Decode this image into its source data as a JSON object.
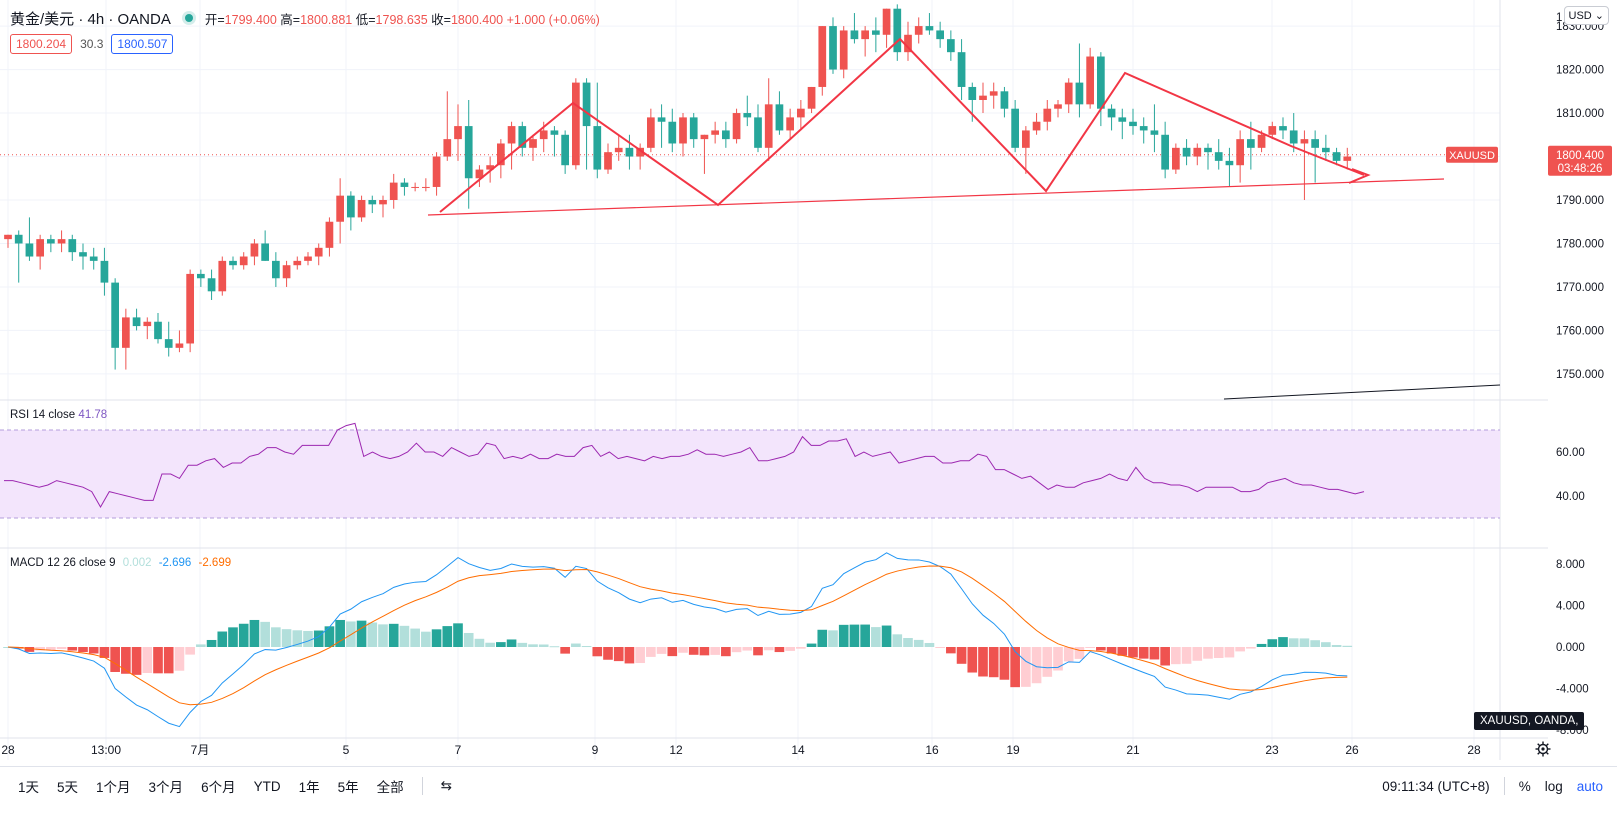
{
  "header": {
    "symbol": "黄金/美元 · 4h · OANDA",
    "ohlc": {
      "open_label": "开=",
      "open": "1799.400",
      "high_label": "高=",
      "high": "1800.881",
      "low_label": "低=",
      "low": "1798.635",
      "close_label": "收=",
      "close": "1800.400",
      "change": "+1.000 (+0.06%)"
    },
    "bid": "1800.204",
    "spread": "30.3",
    "ask": "1800.507",
    "currency_button": "USD ⌄"
  },
  "price_axis": {
    "labels": [
      "1830.000",
      "1820.000",
      "1810.000",
      "1800.000",
      "1790.000",
      "1780.000",
      "1770.000",
      "1760.000",
      "1750.000"
    ],
    "top_partial": "1",
    "current_price": "1800.400",
    "countdown": "03:48:26",
    "symbol_tag": "XAUUSD"
  },
  "rsi": {
    "title": "RSI",
    "params": "14 close",
    "value": "41.78",
    "axis_labels": [
      "60.00",
      "40.00"
    ],
    "upper_band": 70,
    "lower band": 30,
    "values": [
      47,
      47,
      46,
      45,
      44,
      45,
      47,
      46,
      45,
      44,
      42,
      35,
      42,
      41,
      40,
      39,
      38,
      38,
      50,
      50,
      48,
      54,
      54,
      56,
      57,
      53,
      55,
      55,
      58,
      59,
      62,
      62,
      60,
      59,
      63,
      63,
      63,
      63,
      70,
      72,
      73,
      58,
      60,
      58,
      57,
      58,
      60,
      64,
      60,
      60,
      58,
      62,
      60,
      58,
      59,
      64,
      63,
      57,
      58,
      57,
      59,
      57,
      57,
      59,
      58,
      58,
      62,
      63,
      58,
      60,
      57,
      58,
      57,
      56,
      58,
      57,
      58,
      58,
      59,
      61,
      59,
      59,
      58,
      59,
      60,
      62,
      56,
      56,
      57,
      58,
      60,
      67,
      63,
      63,
      65,
      65,
      66,
      58,
      60,
      58,
      59,
      60,
      55,
      56,
      57,
      58,
      58,
      55,
      55,
      56,
      56,
      59,
      58,
      52,
      52,
      50,
      48,
      49,
      46,
      43,
      45,
      44,
      44,
      46,
      47,
      48,
      50,
      48,
      47,
      53,
      48,
      46,
      46,
      45,
      45,
      44,
      42,
      44,
      44,
      44,
      44,
      42,
      42,
      43,
      46,
      47,
      48,
      46,
      45,
      45,
      44,
      43,
      43,
      42,
      41,
      42
    ]
  },
  "macd": {
    "title": "MACD",
    "params": "12 26 close 9",
    "hist_value": "0.002",
    "macd_value": "-2.696",
    "signal_value": "-2.699",
    "axis_labels": [
      "8.000",
      "4.000",
      "0.000",
      "-4.000",
      "-8.000"
    ]
  },
  "chart_data": {
    "type": "candlestick",
    "symbol": "XAUUSD",
    "interval": "4h",
    "ylim": [
      1744,
      1836
    ],
    "x_tick_labels": [
      "28",
      "13:00",
      "7月",
      "5",
      "7",
      "9",
      "12",
      "14",
      "16",
      "19",
      "21",
      "23",
      "26",
      "28"
    ],
    "candles": [
      [
        1781,
        1782,
        1779,
        1782
      ],
      [
        1782,
        1783,
        1771,
        1780
      ],
      [
        1780,
        1786,
        1776,
        1777
      ],
      [
        1777,
        1782,
        1774,
        1781
      ],
      [
        1781,
        1782,
        1778,
        1780
      ],
      [
        1780,
        1783,
        1778,
        1781
      ],
      [
        1781,
        1782,
        1776,
        1778
      ],
      [
        1778,
        1780,
        1774,
        1777
      ],
      [
        1777,
        1779,
        1774,
        1776
      ],
      [
        1776,
        1779,
        1768,
        1771
      ],
      [
        1771,
        1772,
        1751,
        1756
      ],
      [
        1756,
        1765,
        1751,
        1763
      ],
      [
        1763,
        1765,
        1760,
        1761
      ],
      [
        1761,
        1763,
        1758,
        1762
      ],
      [
        1762,
        1764,
        1757,
        1758
      ],
      [
        1758,
        1762,
        1754,
        1756
      ],
      [
        1756,
        1760,
        1755,
        1757
      ],
      [
        1757,
        1774,
        1755,
        1773
      ],
      [
        1773,
        1774,
        1770,
        1772
      ],
      [
        1772,
        1774,
        1767,
        1769
      ],
      [
        1769,
        1777,
        1768,
        1776
      ],
      [
        1776,
        1777,
        1774,
        1775
      ],
      [
        1775,
        1778,
        1774,
        1777
      ],
      [
        1777,
        1781,
        1775,
        1780
      ],
      [
        1780,
        1783,
        1776,
        1776
      ],
      [
        1776,
        1778,
        1770,
        1772
      ],
      [
        1772,
        1776,
        1770,
        1775
      ],
      [
        1775,
        1777,
        1774,
        1776
      ],
      [
        1776,
        1778,
        1775,
        1777
      ],
      [
        1777,
        1780,
        1775,
        1779
      ],
      [
        1779,
        1786,
        1777,
        1785
      ],
      [
        1785,
        1795,
        1780,
        1791
      ],
      [
        1791,
        1792,
        1783,
        1786
      ],
      [
        1786,
        1791,
        1785,
        1790
      ],
      [
        1790,
        1791,
        1787,
        1789
      ],
      [
        1789,
        1791,
        1786,
        1790
      ],
      [
        1790,
        1796,
        1788,
        1794
      ],
      [
        1794,
        1795,
        1791,
        1793
      ],
      [
        1793,
        1794,
        1792,
        1793
      ],
      [
        1793,
        1795,
        1792,
        1793
      ],
      [
        1793,
        1801,
        1791,
        1800
      ],
      [
        1800,
        1815,
        1799,
        1804
      ],
      [
        1804,
        1812,
        1799,
        1807
      ],
      [
        1807,
        1813,
        1788,
        1795
      ],
      [
        1795,
        1798,
        1793,
        1797
      ],
      [
        1797,
        1800,
        1794,
        1798
      ],
      [
        1798,
        1804,
        1795,
        1803
      ],
      [
        1803,
        1808,
        1797,
        1807
      ],
      [
        1807,
        1808,
        1800,
        1802
      ],
      [
        1802,
        1805,
        1799,
        1804
      ],
      [
        1804,
        1808,
        1801,
        1806
      ],
      [
        1806,
        1807,
        1800,
        1805
      ],
      [
        1805,
        1806,
        1796,
        1798
      ],
      [
        1798,
        1818,
        1797,
        1817
      ],
      [
        1817,
        1818,
        1797,
        1807
      ],
      [
        1807,
        1817,
        1795,
        1797
      ],
      [
        1797,
        1803,
        1796,
        1801
      ],
      [
        1801,
        1805,
        1799,
        1802
      ],
      [
        1802,
        1805,
        1797,
        1800
      ],
      [
        1800,
        1803,
        1797,
        1802
      ],
      [
        1802,
        1811,
        1801,
        1809
      ],
      [
        1809,
        1812,
        1802,
        1808
      ],
      [
        1808,
        1811,
        1801,
        1803
      ],
      [
        1803,
        1810,
        1800,
        1809
      ],
      [
        1809,
        1810,
        1802,
        1804
      ],
      [
        1804,
        1805,
        1796,
        1805
      ],
      [
        1805,
        1808,
        1803,
        1806
      ],
      [
        1806,
        1808,
        1802,
        1804
      ],
      [
        1804,
        1811,
        1803,
        1810
      ],
      [
        1810,
        1814,
        1807,
        1809
      ],
      [
        1809,
        1812,
        1801,
        1802
      ],
      [
        1802,
        1818,
        1799,
        1812
      ],
      [
        1812,
        1815,
        1805,
        1806
      ],
      [
        1806,
        1811,
        1804,
        1809
      ],
      [
        1809,
        1813,
        1806,
        1811
      ],
      [
        1811,
        1816,
        1810,
        1816
      ],
      [
        1816,
        1830,
        1814,
        1830
      ],
      [
        1830,
        1832,
        1819,
        1820
      ],
      [
        1820,
        1830,
        1818,
        1829
      ],
      [
        1829,
        1833,
        1826,
        1827
      ],
      [
        1827,
        1830,
        1823,
        1829
      ],
      [
        1829,
        1832,
        1824,
        1828
      ],
      [
        1828,
        1834,
        1825,
        1834
      ],
      [
        1834,
        1835,
        1822,
        1824
      ],
      [
        1824,
        1831,
        1822,
        1828
      ],
      [
        1828,
        1832,
        1826,
        1830
      ],
      [
        1830,
        1833,
        1828,
        1829
      ],
      [
        1829,
        1831,
        1825,
        1827
      ],
      [
        1827,
        1829,
        1822,
        1824
      ],
      [
        1824,
        1827,
        1813,
        1816
      ],
      [
        1816,
        1817,
        1808,
        1813
      ],
      [
        1813,
        1817,
        1810,
        1814
      ],
      [
        1814,
        1817,
        1811,
        1815
      ],
      [
        1815,
        1816,
        1809,
        1811
      ],
      [
        1811,
        1813,
        1801,
        1802
      ],
      [
        1802,
        1807,
        1796,
        1806
      ],
      [
        1806,
        1810,
        1805,
        1808
      ],
      [
        1808,
        1813,
        1806,
        1811
      ],
      [
        1811,
        1813,
        1809,
        1812
      ],
      [
        1812,
        1818,
        1810,
        1817
      ],
      [
        1817,
        1826,
        1809,
        1812
      ],
      [
        1812,
        1825,
        1811,
        1823
      ],
      [
        1823,
        1824,
        1807,
        1811
      ],
      [
        1811,
        1812,
        1806,
        1809
      ],
      [
        1809,
        1811,
        1804,
        1808
      ],
      [
        1808,
        1811,
        1805,
        1807
      ],
      [
        1807,
        1809,
        1803,
        1806
      ],
      [
        1806,
        1812,
        1801,
        1805
      ],
      [
        1805,
        1808,
        1795,
        1797
      ],
      [
        1797,
        1803,
        1796,
        1802
      ],
      [
        1802,
        1804,
        1798,
        1800
      ],
      [
        1800,
        1803,
        1798,
        1802
      ],
      [
        1802,
        1803,
        1797,
        1801
      ],
      [
        1801,
        1804,
        1797,
        1799
      ],
      [
        1799,
        1802,
        1793,
        1798
      ],
      [
        1798,
        1806,
        1794,
        1804
      ],
      [
        1804,
        1808,
        1797,
        1802
      ],
      [
        1802,
        1806,
        1801,
        1805
      ],
      [
        1805,
        1808,
        1804,
        1807
      ],
      [
        1807,
        1809,
        1804,
        1806
      ],
      [
        1806,
        1810,
        1801,
        1803
      ],
      [
        1803,
        1806,
        1790,
        1804
      ],
      [
        1804,
        1806,
        1794,
        1802
      ],
      [
        1802,
        1805,
        1799,
        1801
      ],
      [
        1801,
        1802,
        1798,
        1799
      ],
      [
        1799,
        1802,
        1797,
        1800
      ]
    ],
    "trendlines": [
      {
        "from": [
          0,
          1790
        ],
        "to": [
          1,
          1799
        ],
        "color": "#f23645"
      }
    ]
  },
  "bottom_bar": {
    "ranges": [
      "1天",
      "5天",
      "1个月",
      "3个月",
      "6个月",
      "YTD",
      "1年",
      "5年",
      "全部"
    ],
    "compare_icon": "⇆",
    "time": "09:11:34 (UTC+8)",
    "percent": "%",
    "log": "log",
    "auto": "auto"
  },
  "date_tip": "XAUUSD, OANDA,"
}
